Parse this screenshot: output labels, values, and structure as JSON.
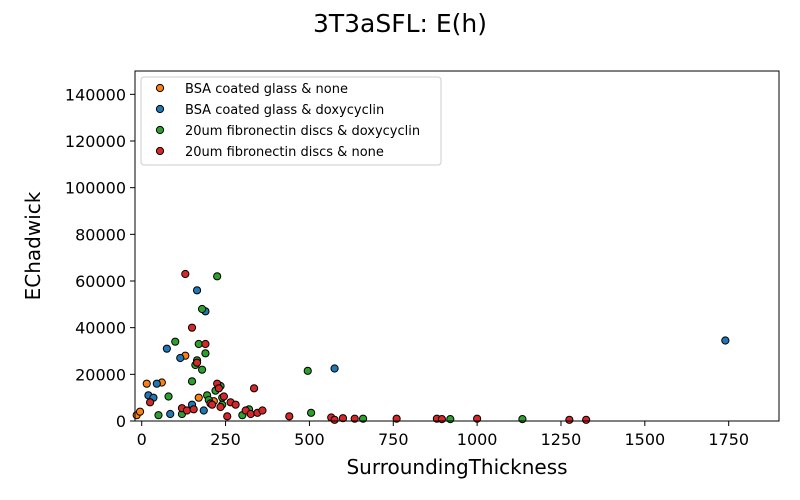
{
  "chart_data": {
    "type": "scatter",
    "title": "3T3aSFL: E(h)",
    "xlabel": "SurroundingThickness",
    "ylabel": "EChadwick",
    "xlim": [
      -20,
      1900
    ],
    "ylim": [
      0,
      150000
    ],
    "xticks": [
      0,
      250,
      500,
      750,
      1000,
      1250,
      1500,
      1750
    ],
    "yticks": [
      0,
      20000,
      40000,
      60000,
      80000,
      100000,
      120000,
      140000
    ],
    "xtick_labels": [
      "0",
      "250",
      "500",
      "750",
      "1000",
      "1250",
      "1500",
      "1750"
    ],
    "ytick_labels": [
      "0",
      "20000",
      "40000",
      "60000",
      "80000",
      "100000",
      "120000",
      "140000"
    ],
    "legend_position": "upper-left",
    "grid": false,
    "series": [
      {
        "name": "BSA coated glass & none",
        "color": "#ff7f0e",
        "points": [
          [
            -15,
            2500
          ],
          [
            -5,
            4000
          ],
          [
            15,
            16000
          ],
          [
            60,
            16500
          ],
          [
            130,
            28000
          ],
          [
            170,
            10000
          ],
          [
            215,
            8500
          ]
        ]
      },
      {
        "name": "BSA coated glass & doxycyclin",
        "color": "#1f77b4",
        "points": [
          [
            20,
            11000
          ],
          [
            35,
            10000
          ],
          [
            45,
            16000
          ],
          [
            75,
            31000
          ],
          [
            85,
            3000
          ],
          [
            115,
            27000
          ],
          [
            130,
            135000
          ],
          [
            150,
            7000
          ],
          [
            165,
            56000
          ],
          [
            185,
            4500
          ],
          [
            190,
            47000
          ],
          [
            575,
            22500
          ],
          [
            1740,
            34500
          ]
        ]
      },
      {
        "name": "20um fibronectin discs & doxycyclin",
        "color": "#2ca02c",
        "points": [
          [
            50,
            2500
          ],
          [
            80,
            10500
          ],
          [
            100,
            34000
          ],
          [
            120,
            3000
          ],
          [
            150,
            17000
          ],
          [
            160,
            24000
          ],
          [
            165,
            26000
          ],
          [
            170,
            33000
          ],
          [
            180,
            48000
          ],
          [
            180,
            22000
          ],
          [
            190,
            29000
          ],
          [
            195,
            11000
          ],
          [
            200,
            9000
          ],
          [
            220,
            13000
          ],
          [
            225,
            62000
          ],
          [
            235,
            15000
          ],
          [
            240,
            7000
          ],
          [
            240,
            10000
          ],
          [
            300,
            2500
          ],
          [
            320,
            5000
          ],
          [
            495,
            21500
          ],
          [
            505,
            3500
          ],
          [
            660,
            1000
          ],
          [
            920,
            800
          ],
          [
            1135,
            800
          ]
        ]
      },
      {
        "name": "20um fibronectin discs & none",
        "color": "#d62728",
        "points": [
          [
            25,
            8000
          ],
          [
            120,
            5500
          ],
          [
            130,
            63000
          ],
          [
            135,
            4500
          ],
          [
            150,
            40000
          ],
          [
            155,
            5000
          ],
          [
            165,
            25000
          ],
          [
            190,
            33000
          ],
          [
            205,
            7500
          ],
          [
            210,
            7000
          ],
          [
            225,
            16000
          ],
          [
            230,
            14000
          ],
          [
            235,
            6000
          ],
          [
            245,
            10500
          ],
          [
            255,
            2000
          ],
          [
            265,
            8000
          ],
          [
            280,
            7000
          ],
          [
            310,
            4500
          ],
          [
            325,
            3000
          ],
          [
            335,
            14000
          ],
          [
            345,
            3500
          ],
          [
            360,
            4500
          ],
          [
            440,
            2000
          ],
          [
            565,
            1500
          ],
          [
            575,
            500
          ],
          [
            600,
            1200
          ],
          [
            635,
            1000
          ],
          [
            760,
            1000
          ],
          [
            880,
            1000
          ],
          [
            895,
            800
          ],
          [
            1000,
            1000
          ],
          [
            1275,
            500
          ],
          [
            1325,
            500
          ]
        ]
      }
    ]
  }
}
